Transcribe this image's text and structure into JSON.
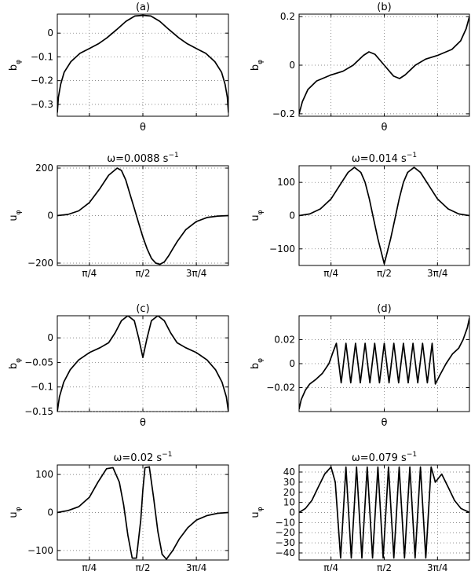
{
  "chart_data": [
    {
      "panel": "(a)",
      "type": "line",
      "title": "(a)",
      "xlabel": "θ",
      "ylabel": "b",
      "ylabel_sub": "φ",
      "xlim": [
        0.3142,
        2.8274
      ],
      "ylim": [
        -0.35,
        0.08
      ],
      "yticks": [
        0,
        -0.1,
        -0.2,
        -0.3
      ],
      "yticklabels": [
        "0",
        "−0.1",
        "−0.2",
        "−0.3"
      ],
      "xticks": [
        0.7854,
        1.5708,
        2.3562
      ],
      "xticklabels": [
        "",
        "",
        ""
      ],
      "grid": true,
      "series": [
        {
          "x": [
            0.3142,
            0.3307,
            0.3632,
            0.4145,
            0.5135,
            0.6472,
            0.7854,
            0.9174,
            1.0431,
            1.1859,
            1.3227,
            1.4528,
            1.5708,
            1.6888,
            1.8189,
            1.9557,
            2.0985,
            2.2242,
            2.3562,
            2.4944,
            2.6281,
            2.7271,
            2.7784,
            2.8109,
            2.8274
          ],
          "y": [
            -0.335,
            -0.27,
            -0.215,
            -0.165,
            -0.12,
            -0.085,
            -0.065,
            -0.045,
            -0.02,
            0.015,
            0.05,
            0.072,
            0.075,
            0.072,
            0.05,
            0.015,
            -0.02,
            -0.045,
            -0.065,
            -0.085,
            -0.12,
            -0.165,
            -0.215,
            -0.27,
            -0.335
          ]
        }
      ]
    },
    {
      "panel": "(b)",
      "type": "line",
      "title": "(b)",
      "xlabel": "θ",
      "ylabel": "b",
      "ylabel_sub": "φ",
      "xlim": [
        0.3142,
        2.8274
      ],
      "ylim": [
        -0.21,
        0.21
      ],
      "yticks": [
        0.2,
        0,
        -0.2
      ],
      "yticklabels": [
        "0.2",
        "0",
        "−0.2"
      ],
      "xticks": [
        0.7854,
        1.5708,
        2.3562
      ],
      "xticklabels": [
        "",
        "",
        ""
      ],
      "grid": true,
      "series": [
        {
          "x": [
            0.3142,
            0.3633,
            0.4444,
            0.5725,
            0.7854,
            0.9614,
            1.1121,
            1.2629,
            1.3451,
            1.4331,
            1.5708,
            1.7085,
            1.7965,
            1.8787,
            2.0295,
            2.1802,
            2.3562,
            2.5691,
            2.6972,
            2.7783,
            2.8274
          ],
          "y": [
            -0.2,
            -0.15,
            -0.1,
            -0.065,
            -0.04,
            -0.025,
            0.0,
            0.04,
            0.055,
            0.045,
            0.0,
            -0.045,
            -0.055,
            -0.04,
            0.0,
            0.025,
            0.04,
            0.065,
            0.1,
            0.15,
            0.2
          ]
        }
      ]
    },
    {
      "panel": "omega-a",
      "type": "line",
      "title": "ω=0.0088 s",
      "title_sup": "−1",
      "xlabel": "",
      "ylabel": "u",
      "ylabel_sub": "φ",
      "xlim": [
        0.3142,
        2.8274
      ],
      "ylim": [
        -210,
        210
      ],
      "yticks": [
        200,
        0,
        -200
      ],
      "yticklabels": [
        "200",
        "0",
        "−200"
      ],
      "xticks": [
        0.7854,
        1.5708,
        2.3562
      ],
      "xticklabels": [
        "π/4",
        "π/2",
        "3π/4"
      ],
      "grid": true,
      "series": [
        {
          "x": [
            0.3142,
            0.4712,
            0.6283,
            0.7854,
            0.9425,
            1.0681,
            1.1938,
            1.2566,
            1.3195,
            1.3823,
            1.4451,
            1.5079,
            1.5708,
            1.6336,
            1.6965,
            1.7593,
            1.8221,
            1.885,
            1.9478,
            2.0106,
            2.0735,
            2.1991,
            2.3562,
            2.5133,
            2.6704,
            2.8274
          ],
          "y": [
            0,
            5,
            20,
            55,
            115,
            170,
            200,
            190,
            150,
            90,
            30,
            -30,
            -90,
            -140,
            -180,
            -200,
            -205,
            -195,
            -170,
            -140,
            -110,
            -60,
            -25,
            -8,
            -2,
            0
          ]
        }
      ]
    },
    {
      "panel": "omega-b",
      "type": "line",
      "title": "ω=0.014 s",
      "title_sup": "−1",
      "xlabel": "",
      "ylabel": "u",
      "ylabel_sub": "φ",
      "xlim": [
        0.3142,
        2.8274
      ],
      "ylim": [
        -150,
        150
      ],
      "yticks": [
        100,
        0,
        -100
      ],
      "yticklabels": [
        "100",
        "0",
        "−100"
      ],
      "xticks": [
        0.7854,
        1.5708,
        2.3562
      ],
      "xticklabels": [
        "π/4",
        "π/2",
        "3π/4"
      ],
      "grid": true,
      "series": [
        {
          "x": [
            0.3142,
            0.4712,
            0.6283,
            0.7854,
            0.9111,
            1.0367,
            1.131,
            1.2252,
            1.288,
            1.3509,
            1.4137,
            1.4765,
            1.5394,
            1.5708,
            1.6022,
            1.665,
            1.7279,
            1.7907,
            1.8535,
            1.9164,
            2.0106,
            2.1049,
            2.2305,
            2.3562,
            2.5133,
            2.6704,
            2.8274
          ],
          "y": [
            0,
            5,
            20,
            50,
            90,
            130,
            145,
            130,
            100,
            50,
            -10,
            -70,
            -120,
            -145,
            -120,
            -70,
            -10,
            50,
            100,
            130,
            145,
            130,
            90,
            50,
            20,
            5,
            0
          ]
        }
      ]
    },
    {
      "panel": "(c)",
      "type": "line",
      "title": "(c)",
      "xlabel": "θ",
      "ylabel": "b",
      "ylabel_sub": "φ",
      "xlim": [
        0.3142,
        2.8274
      ],
      "ylim": [
        -0.15,
        0.045
      ],
      "yticks": [
        0,
        -0.05,
        -0.1,
        -0.15
      ],
      "yticklabels": [
        "0",
        "−0.05",
        "−0.1",
        "−0.15"
      ],
      "xticks": [
        0.7854,
        1.5708,
        2.3562
      ],
      "xticklabels": [
        "",
        "",
        ""
      ],
      "grid": true,
      "series": [
        {
          "x": [
            0.3142,
            0.3456,
            0.4084,
            0.5027,
            0.6283,
            0.7854,
            0.9425,
            1.0681,
            1.1624,
            1.2566,
            1.3509,
            1.4451,
            1.508,
            1.5708,
            1.6336,
            1.6965,
            1.7907,
            1.885,
            1.9792,
            2.0735,
            2.1991,
            2.3562,
            2.5133,
            2.6389,
            2.7332,
            2.796,
            2.8274
          ],
          "y": [
            -0.15,
            -0.12,
            -0.09,
            -0.065,
            -0.045,
            -0.03,
            -0.02,
            -0.01,
            0.01,
            0.035,
            0.045,
            0.035,
            0.0,
            -0.04,
            0.0,
            0.035,
            0.045,
            0.035,
            0.01,
            -0.01,
            -0.02,
            -0.03,
            -0.045,
            -0.065,
            -0.09,
            -0.12,
            -0.15
          ]
        }
      ]
    },
    {
      "panel": "(d)",
      "type": "line",
      "title": "(d)",
      "xlabel": "θ",
      "ylabel": "b",
      "ylabel_sub": "φ",
      "xlim": [
        0.3142,
        2.8274
      ],
      "ylim": [
        -0.04,
        0.04
      ],
      "yticks": [
        0.02,
        0,
        -0.02
      ],
      "yticklabels": [
        "0.02",
        "0",
        "−0.02"
      ],
      "xticks": [
        0.7854,
        1.5708,
        2.3562
      ],
      "xticklabels": [
        "",
        "",
        ""
      ],
      "grid": true,
      "series": [
        {
          "x": [
            0.3142,
            0.3456,
            0.4084,
            0.4712,
            0.5655,
            0.6597,
            0.754,
            0.8168,
            0.8639,
            0.9346,
            1.0053,
            1.0759,
            1.1466,
            1.2173,
            1.288,
            1.3587,
            1.4294,
            1.5001,
            1.5708,
            1.6415,
            1.7122,
            1.7829,
            1.8535,
            1.9242,
            1.9949,
            2.0656,
            2.1363,
            2.207,
            2.2777,
            2.3248,
            2.3876,
            2.4819,
            2.5761,
            2.6704,
            2.7332,
            2.796,
            2.8274
          ],
          "y": [
            -0.038,
            -0.03,
            -0.022,
            -0.017,
            -0.013,
            -0.008,
            0.0,
            0.01,
            0.017,
            -0.016,
            0.017,
            -0.016,
            0.017,
            -0.016,
            0.017,
            -0.016,
            0.017,
            -0.016,
            0.017,
            -0.016,
            0.017,
            -0.016,
            0.017,
            -0.016,
            0.017,
            -0.016,
            0.017,
            -0.016,
            0.017,
            -0.017,
            -0.01,
            0.0,
            0.008,
            0.013,
            0.02,
            0.03,
            0.038
          ]
        }
      ]
    },
    {
      "panel": "omega-c",
      "type": "line",
      "title": "ω=0.02 s",
      "title_sup": "−1",
      "xlabel": "",
      "ylabel": "u",
      "ylabel_sub": "φ",
      "xlim": [
        0.3142,
        2.8274
      ],
      "ylim": [
        -125,
        125
      ],
      "yticks": [
        100,
        0,
        -100
      ],
      "yticklabels": [
        "100",
        "0",
        "−100"
      ],
      "xticks": [
        0.7854,
        1.5708,
        2.3562
      ],
      "xticklabels": [
        "π/4",
        "π/2",
        "3π/4"
      ],
      "grid": true,
      "series": [
        {
          "x": [
            0.3142,
            0.4712,
            0.6283,
            0.7854,
            0.9111,
            1.0367,
            1.131,
            1.2252,
            1.288,
            1.3509,
            1.4137,
            1.4765,
            1.5394,
            1.5708,
            1.6022,
            1.665,
            1.7279,
            1.7907,
            1.8535,
            1.9164,
            2.0106,
            2.1049,
            2.2305,
            2.3562,
            2.5133,
            2.6704,
            2.8274
          ],
          "y": [
            0,
            5,
            15,
            40,
            80,
            115,
            118,
            80,
            20,
            -60,
            -120,
            -120,
            -20,
            60,
            118,
            120,
            40,
            -50,
            -110,
            -123,
            -100,
            -70,
            -40,
            -20,
            -8,
            -2,
            0
          ]
        }
      ]
    },
    {
      "panel": "omega-d",
      "type": "line",
      "title": "ω=0.079 s",
      "title_sup": "−1",
      "xlabel": "",
      "ylabel": "u",
      "ylabel_sub": "φ",
      "xlim": [
        0.3142,
        2.8274
      ],
      "ylim": [
        -47,
        47
      ],
      "yticks": [
        40,
        30,
        20,
        10,
        0,
        -10,
        -20,
        -30,
        -40
      ],
      "yticklabels": [
        "40",
        "30",
        "20",
        "10",
        "0",
        "−10",
        "−20",
        "−30",
        "−40"
      ],
      "xticks": [
        0.7854,
        1.5708,
        2.3562
      ],
      "xticklabels": [
        "π/4",
        "π/2",
        "3π/4"
      ],
      "grid": true,
      "series": [
        {
          "x": [
            0.3142,
            0.4084,
            0.5027,
            0.5969,
            0.6912,
            0.7854,
            0.8482,
            0.9268,
            1.0053,
            1.0839,
            1.1624,
            1.2409,
            1.3195,
            1.398,
            1.4765,
            1.5551,
            1.6336,
            1.7122,
            1.7907,
            1.8692,
            1.9478,
            2.0263,
            2.1049,
            2.1834,
            2.2619,
            2.3248,
            2.419,
            2.5133,
            2.6075,
            2.7018,
            2.8274
          ],
          "y": [
            0,
            4,
            12,
            25,
            38,
            45,
            30,
            -45,
            45,
            -45,
            45,
            -45,
            45,
            -45,
            45,
            -45,
            45,
            -45,
            45,
            -45,
            45,
            -45,
            45,
            -45,
            45,
            30,
            38,
            25,
            12,
            4,
            0
          ]
        }
      ]
    }
  ]
}
